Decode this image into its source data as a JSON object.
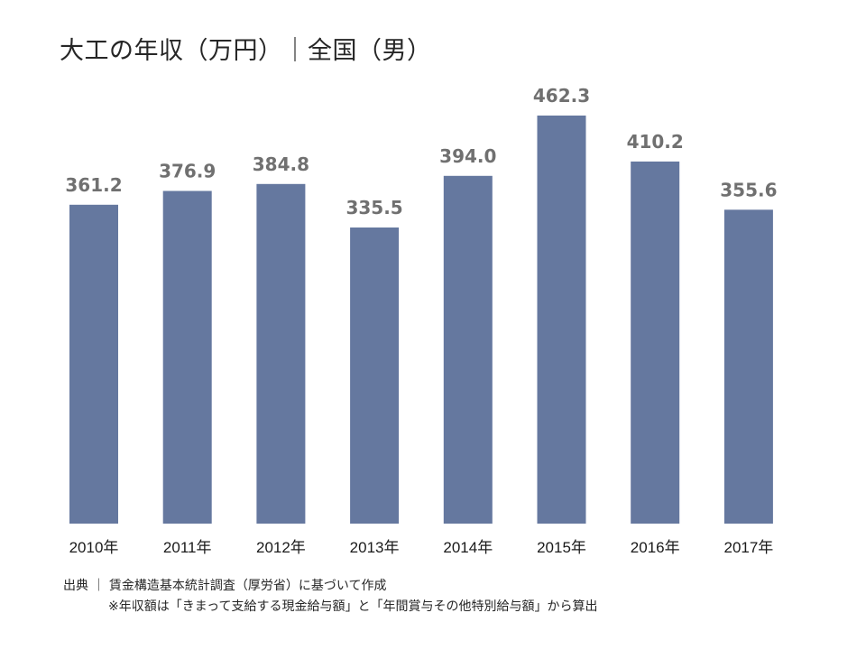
{
  "title": "大工の年収（万円）｜全国（男）",
  "source": "出典 ｜ 賃金構造基本統計調査（厚労省）に基づいて作成",
  "note": "※年収額は「きまって支給する現金給与額」と「年間賞与その他特別給与額」から算出",
  "colors": {
    "bar": "#65789F",
    "value_label": "#707070",
    "text": "#262626"
  },
  "chart_data": {
    "type": "bar",
    "title": "大工の年収（万円）｜全国（男）",
    "categories": [
      "2010年",
      "2011年",
      "2012年",
      "2013年",
      "2014年",
      "2015年",
      "2016年",
      "2017年"
    ],
    "values": [
      361.2,
      376.9,
      384.8,
      335.5,
      394.0,
      462.3,
      410.2,
      355.6
    ],
    "value_labels": [
      "361.2",
      "376.9",
      "384.8",
      "335.5",
      "394.0",
      "462.3",
      "410.2",
      "355.6"
    ],
    "xlabel": "",
    "ylabel": "",
    "ylim": [
      0,
      462.3
    ],
    "grid": false,
    "legend": "none"
  }
}
